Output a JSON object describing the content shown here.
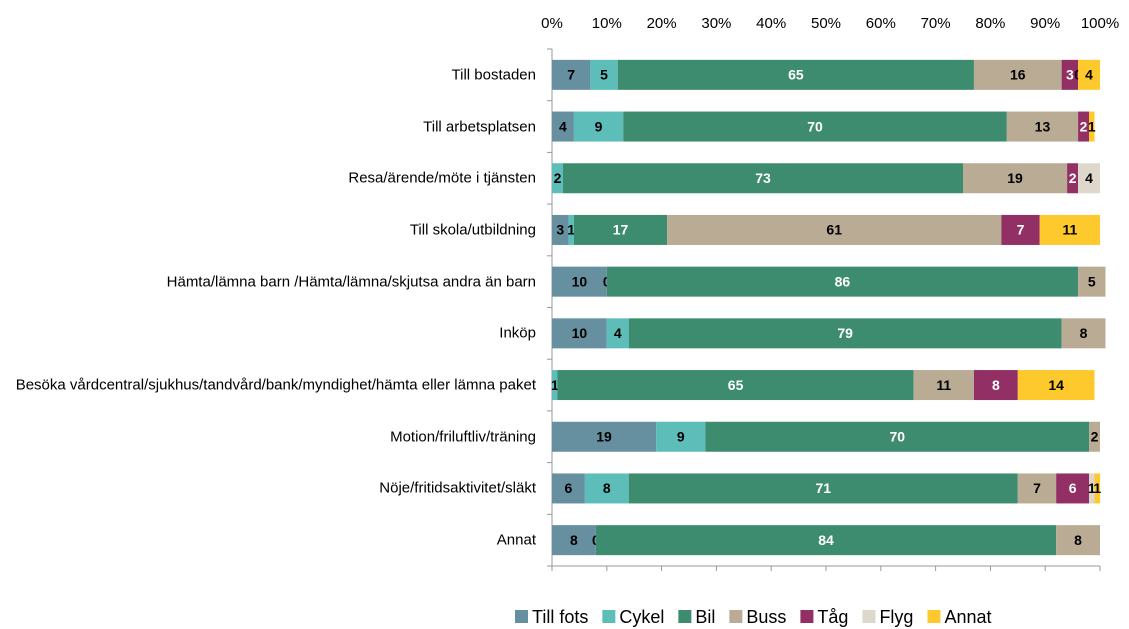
{
  "chart_data": {
    "type": "stacked-bar-horizontal",
    "categories": [
      "Till bostaden",
      "Till arbetsplatsen",
      "Resa/ärende/möte i tjänsten",
      "Till skola/utbildning",
      "Hämta/lämna barn /Hämta/lämna/skjutsa andra än barn",
      "Inköp",
      "Besöka vårdcentral/sjukhus/tandvård/bank/myndighet/hämta eller lämna paket",
      "Motion/friluftliv/träning",
      "Nöje/fritidsaktivitet/släkt",
      "Annat"
    ],
    "series": [
      {
        "name": "Till fots",
        "color": "#6690a0",
        "values": [
          7,
          4,
          null,
          3,
          10,
          10,
          null,
          19,
          6,
          8
        ]
      },
      {
        "name": "Cykel",
        "color": "#5cbdb9",
        "values": [
          5,
          9,
          2,
          1,
          0,
          4,
          1,
          9,
          8,
          0
        ]
      },
      {
        "name": "Bil",
        "color": "#3e8c6f",
        "values": [
          65,
          70,
          73,
          17,
          86,
          79,
          65,
          70,
          71,
          84
        ]
      },
      {
        "name": "Buss",
        "color": "#b9ab94",
        "values": [
          16,
          13,
          19,
          61,
          5,
          8,
          11,
          2,
          7,
          8
        ]
      },
      {
        "name": "Tåg",
        "color": "#922f64",
        "values": [
          3,
          2,
          2,
          7,
          null,
          null,
          8,
          null,
          6,
          null
        ]
      },
      {
        "name": "Flyg",
        "color": "#ddd8cb",
        "values": [
          0,
          null,
          4,
          null,
          null,
          null,
          null,
          null,
          1,
          null
        ]
      },
      {
        "name": "Annat",
        "color": "#fdc92c",
        "values": [
          4,
          1,
          null,
          11,
          null,
          null,
          14,
          null,
          1,
          null
        ]
      }
    ],
    "xlim": [
      0,
      100
    ],
    "xticks": [
      {
        "value": 0,
        "label": "0%"
      },
      {
        "value": 10,
        "label": "10%"
      },
      {
        "value": 20,
        "label": "20%"
      },
      {
        "value": 30,
        "label": "30%"
      },
      {
        "value": 40,
        "label": "40%"
      },
      {
        "value": 50,
        "label": "50%"
      },
      {
        "value": 60,
        "label": "60%"
      },
      {
        "value": 70,
        "label": "70%"
      },
      {
        "value": 80,
        "label": "80%"
      },
      {
        "value": 90,
        "label": "90%"
      },
      {
        "value": 100,
        "label": "100%"
      }
    ],
    "legend": "bottom"
  }
}
